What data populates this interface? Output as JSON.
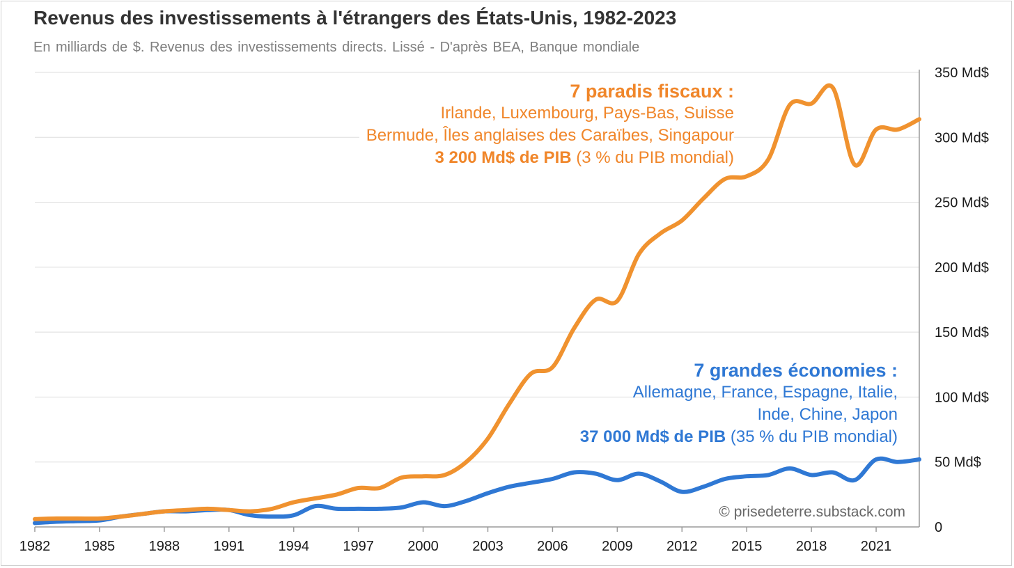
{
  "title": "Revenus des investissements à l'étrangers des États-Unis, 1982-2023",
  "subtitle": "En milliards de $. Revenus des investissements directs. Lissé - D'après BEA, Banque mondiale",
  "credit": "© prisedeterre.substack.com",
  "annotations": {
    "tax_havens": {
      "heading": "7 paradis fiscaux :",
      "line1": "Irlande, Luxembourg, Pays-Bas, Suisse",
      "line2": "Bermude, Îles anglaises des Caraïbes, Singapour",
      "gdp_bold": "3 200 Md$ de PIB",
      "gdp_rest": " (3 % du PIB mondial)"
    },
    "big_economies": {
      "heading": "7 grandes économies :",
      "line1": "Allemagne, France, Espagne, Italie,",
      "line2": "Inde, Chine, Japon",
      "gdp_bold": "37 000 Md$ de PIB",
      "gdp_rest": " (35 % du PIB mondial)"
    }
  },
  "colors": {
    "tax_havens": "#f0922f",
    "big_economies": "#2f78d4",
    "grid": "#dddddd"
  },
  "chart_data": {
    "type": "line",
    "xlim": [
      1982,
      2023
    ],
    "ylim": [
      0,
      350
    ],
    "x_ticks": [
      1982,
      1985,
      1988,
      1991,
      1994,
      1997,
      2000,
      2003,
      2006,
      2009,
      2012,
      2015,
      2018,
      2021
    ],
    "y_ticks": [
      {
        "value": 0,
        "label": "0"
      },
      {
        "value": 50,
        "label": "50 Md$"
      },
      {
        "value": 100,
        "label": "100 Md$"
      },
      {
        "value": 150,
        "label": "150 Md$"
      },
      {
        "value": 200,
        "label": "200 Md$"
      },
      {
        "value": 250,
        "label": "250 Md$"
      },
      {
        "value": 300,
        "label": "300 Md$"
      },
      {
        "value": 350,
        "label": "350 Md$"
      }
    ],
    "grid": true,
    "y_axis_side": "right",
    "x": [
      1982,
      1983,
      1984,
      1985,
      1986,
      1987,
      1988,
      1989,
      1990,
      1991,
      1992,
      1993,
      1994,
      1995,
      1996,
      1997,
      1998,
      1999,
      2000,
      2001,
      2002,
      2003,
      2004,
      2005,
      2006,
      2007,
      2008,
      2009,
      2010,
      2011,
      2012,
      2013,
      2014,
      2015,
      2016,
      2017,
      2018,
      2019,
      2020,
      2021,
      2022,
      2023
    ],
    "series": [
      {
        "key": "tax_havens",
        "values": [
          6,
          6.5,
          6.5,
          6.5,
          8,
          10,
          12,
          13,
          14,
          13,
          12,
          14,
          19,
          22,
          25,
          30,
          30,
          38,
          39,
          40,
          50,
          68,
          95,
          118,
          123,
          153,
          175,
          174,
          210,
          226,
          236,
          253,
          268,
          270,
          283,
          325,
          326,
          338,
          279,
          306,
          306,
          314
        ]
      },
      {
        "key": "big_economies",
        "values": [
          3,
          4,
          4.5,
          5,
          8,
          10,
          12,
          12,
          13,
          13,
          9,
          8,
          9,
          16,
          14,
          14,
          14,
          15,
          19,
          16,
          20,
          26,
          31,
          34,
          37,
          42,
          41,
          36,
          41,
          35,
          27,
          31,
          37,
          39,
          40,
          45,
          40,
          42,
          36,
          52,
          50,
          52
        ]
      }
    ]
  }
}
